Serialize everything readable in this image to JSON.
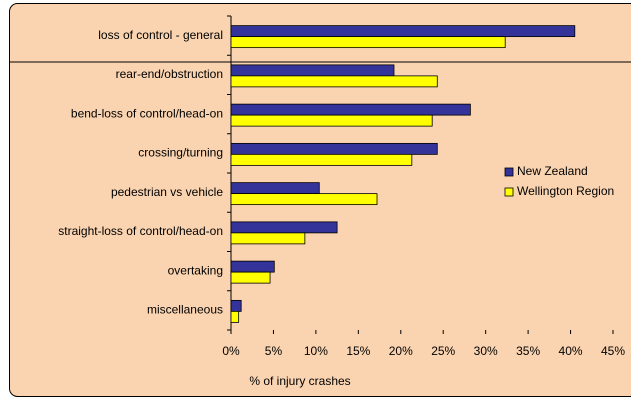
{
  "chart_data": {
    "type": "barh",
    "categories": [
      "loss of control - general",
      "rear-end/obstruction",
      "bend-loss of control/head-on",
      "crossing/turning",
      "pedestrian vs vehicle",
      "straight-loss of control/head-on",
      "overtaking",
      "miscellaneous"
    ],
    "series": [
      {
        "name": "New Zealand",
        "color": "#333399",
        "values": [
          40.5,
          19.2,
          28.2,
          24.3,
          10.4,
          12.5,
          5.1,
          1.2
        ]
      },
      {
        "name": "Wellington Region",
        "color": "#ffff00",
        "values": [
          32.3,
          24.3,
          23.7,
          21.3,
          17.2,
          8.7,
          4.6,
          0.9
        ]
      }
    ],
    "xlabel": "% of injury crashes",
    "xlim": [
      0,
      45
    ],
    "xticks": [
      {
        "value": 0,
        "label": "0%"
      },
      {
        "value": 5,
        "label": "5%"
      },
      {
        "value": 10,
        "label": "10%"
      },
      {
        "value": 15,
        "label": "15%"
      },
      {
        "value": 20,
        "label": "20%"
      },
      {
        "value": 25,
        "label": "25%"
      },
      {
        "value": 30,
        "label": "30%"
      },
      {
        "value": 35,
        "label": "35%"
      },
      {
        "value": 40,
        "label": "40%"
      },
      {
        "value": 45,
        "label": "45%"
      }
    ],
    "legend": "right"
  }
}
